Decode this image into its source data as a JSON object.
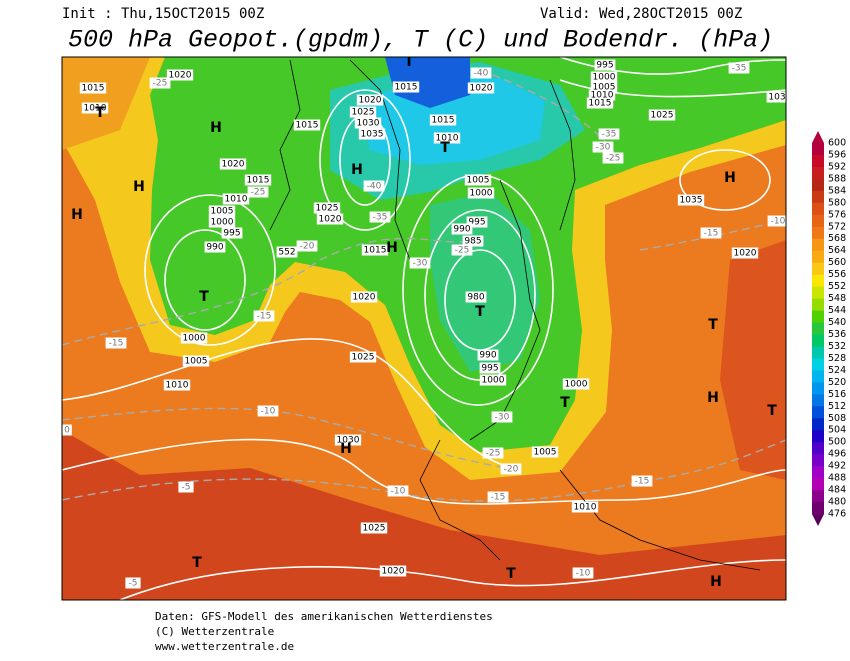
{
  "header": {
    "init": "Init : Thu,15OCT2015 00Z",
    "valid": "Valid: Wed,28OCT2015 00Z",
    "title": "500 hPa Geopot.(gpdm), T (C) und Bodendr. (hPa)"
  },
  "colorbar": {
    "ticks": [
      600,
      596,
      592,
      588,
      584,
      580,
      576,
      572,
      568,
      564,
      560,
      556,
      552,
      548,
      544,
      540,
      536,
      532,
      528,
      524,
      520,
      516,
      512,
      508,
      504,
      500,
      496,
      492,
      488,
      484,
      480,
      476
    ],
    "colors": [
      "#b4003c",
      "#c80a28",
      "#c81e1e",
      "#b42814",
      "#c83c14",
      "#dc5014",
      "#e66414",
      "#f07814",
      "#f59614",
      "#faaa14",
      "#fac814",
      "#fae600",
      "#c8e600",
      "#96dc00",
      "#50d200",
      "#28c83c",
      "#00c864",
      "#00c8aa",
      "#00d2e6",
      "#00b4f0",
      "#0096f0",
      "#0078e6",
      "#0050dc",
      "#0028c8",
      "#1e00c8",
      "#5000c8",
      "#7800c8",
      "#a000c8",
      "#b400b4",
      "#8c008c",
      "#6e006e"
    ]
  },
  "map": {
    "pressure_labels": [
      "1015",
      "1020",
      "1010",
      "1020",
      "1025",
      "1030",
      "1035",
      "1015",
      "1020",
      "995",
      "1000",
      "1005",
      "1010",
      "1015",
      "1025",
      "1015",
      "1015",
      "1010",
      "1020",
      "1015",
      "1010",
      "1005",
      "1000",
      "995",
      "990",
      "1025",
      "1020",
      "1005",
      "1000",
      "995",
      "990",
      "985",
      "1015",
      "980",
      "1020",
      "1000",
      "1005",
      "1010",
      "1025",
      "990",
      "995",
      "1000",
      "1000",
      "1035",
      "1020",
      "1030",
      "1005",
      "1010",
      "1025",
      "1020",
      "103",
      "552"
    ],
    "temperature_labels": [
      "-25",
      "-40",
      "-35",
      "-35",
      "-30",
      "-25",
      "-40",
      "-35",
      "-25",
      "-20",
      "-25",
      "-30",
      "-15",
      "-15",
      "-15",
      "-10",
      "-30",
      "-25",
      "-20",
      "-15",
      "-10",
      "-5",
      "-15",
      "-10",
      "-5",
      "0",
      "-10"
    ],
    "markers": [
      "T",
      "H",
      "H",
      "H",
      "H",
      "T",
      "H",
      "T",
      "T",
      "H",
      "T",
      "H",
      "T",
      "T",
      "H",
      "T",
      "T",
      "H",
      "T"
    ]
  },
  "footer": {
    "lines": [
      "Daten: GFS-Modell des amerikanischen Wetterdienstes",
      "(C) Wetterzentrale",
      "www.wetterzentrale.de"
    ]
  }
}
